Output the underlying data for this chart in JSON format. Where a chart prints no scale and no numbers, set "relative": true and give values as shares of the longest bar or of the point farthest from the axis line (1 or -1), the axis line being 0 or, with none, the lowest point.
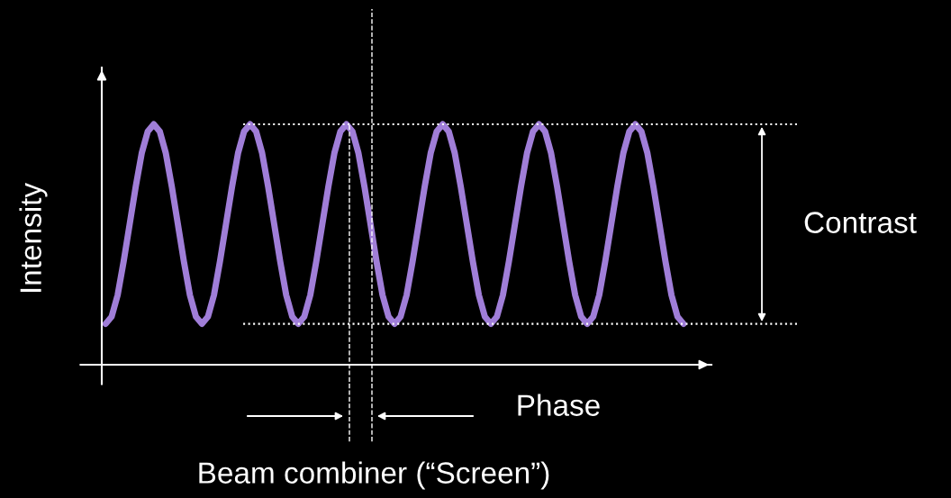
{
  "chart_data": {
    "type": "line",
    "relative": true,
    "ylabel": "Intensity",
    "categories": [
      null,
      null,
      null,
      null,
      null,
      null,
      null,
      null,
      null,
      null,
      null,
      null,
      null,
      null,
      null,
      null,
      null,
      null,
      null,
      null,
      null,
      null,
      null,
      null,
      null,
      null,
      null,
      null,
      null,
      null,
      null,
      null,
      null,
      null,
      null,
      null,
      null,
      null,
      null,
      null,
      null,
      null,
      null,
      null,
      null,
      null,
      null,
      null,
      null,
      null,
      null,
      null,
      null,
      null,
      null,
      null,
      null,
      null,
      null,
      null,
      null,
      null,
      null,
      null,
      null,
      null,
      null,
      null,
      null,
      null,
      null,
      null,
      null,
      null,
      null,
      null,
      null,
      null,
      null,
      null,
      null,
      null,
      null,
      null,
      null,
      null,
      null,
      null,
      null,
      null,
      null,
      null,
      null,
      null,
      null,
      null,
      null
    ],
    "series": [
      {
        "color": "#a07ed8",
        "values": [
          0.17,
          0.2,
          0.29,
          0.43,
          0.585,
          0.74,
          0.88,
          0.97,
          1,
          0.97,
          0.88,
          0.74,
          0.585,
          0.43,
          0.29,
          0.2,
          0.17,
          0.2,
          0.29,
          0.43,
          0.585,
          0.74,
          0.88,
          0.97,
          1,
          0.97,
          0.88,
          0.74,
          0.585,
          0.43,
          0.29,
          0.2,
          0.17,
          0.2,
          0.29,
          0.43,
          0.585,
          0.74,
          0.88,
          0.97,
          1,
          0.97,
          0.88,
          0.74,
          0.585,
          0.43,
          0.29,
          0.2,
          0.17,
          0.2,
          0.29,
          0.43,
          0.585,
          0.74,
          0.88,
          0.97,
          1,
          0.97,
          0.88,
          0.74,
          0.585,
          0.43,
          0.29,
          0.2,
          0.17,
          0.2,
          0.29,
          0.43,
          0.585,
          0.74,
          0.88,
          0.97,
          1,
          0.97,
          0.88,
          0.74,
          0.585,
          0.43,
          0.29,
          0.2,
          0.17,
          0.2,
          0.29,
          0.43,
          0.585,
          0.74,
          0.88,
          0.97,
          1,
          0.97,
          0.88,
          0.74,
          0.585,
          0.43,
          0.29,
          0.2,
          0.17
        ]
      }
    ],
    "ref_lines": [
      {
        "axis": "y",
        "value": 1,
        "color": "#ffffff",
        "line_style": "dotted"
      },
      {
        "axis": "y",
        "value": 0.17,
        "color": "#ffffff",
        "line_style": "dotted"
      }
    ],
    "annotations": [
      "Phase",
      "Contrast",
      "Beam combiner (“Screen”)"
    ],
    "marker": "none",
    "line_style": "solid"
  }
}
